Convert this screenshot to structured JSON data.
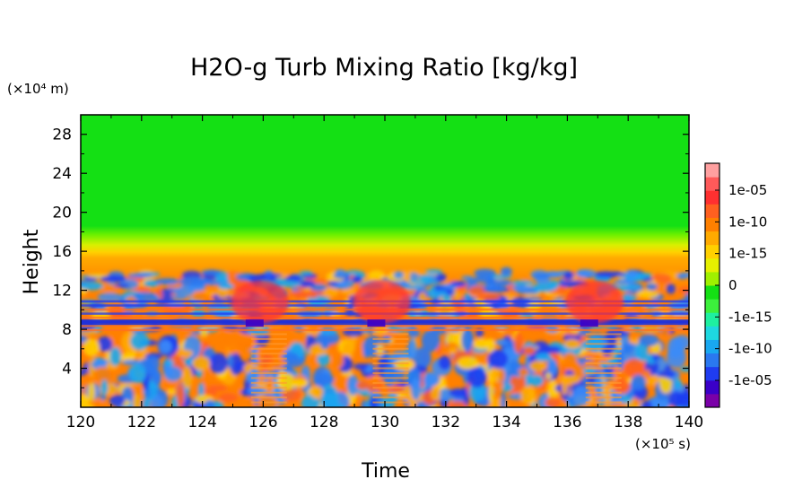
{
  "chart_data": {
    "type": "heatmap",
    "title": "H2O-g Turb Mixing Ratio [kg/kg]",
    "xlabel": "Time",
    "ylabel": "Height",
    "x_unit": "(×10⁵ s)",
    "y_unit": "(×10⁴ m)",
    "xlim": [
      120,
      140
    ],
    "ylim": [
      0,
      30
    ],
    "x_ticks": [
      120,
      122,
      124,
      126,
      128,
      130,
      132,
      134,
      136,
      138,
      140
    ],
    "x_tick_labels": [
      "120",
      "122",
      "124",
      "126",
      "128",
      "130",
      "132",
      "134",
      "136",
      "138",
      "140"
    ],
    "y_ticks": [
      4,
      8,
      12,
      16,
      20,
      24,
      28
    ],
    "y_tick_labels": [
      "4",
      "8",
      "12",
      "16",
      "20",
      "24",
      "28"
    ],
    "grid": false,
    "legend": "colorbar-right",
    "colorbar": {
      "tick_labels": [
        "1e-05",
        "1e-10",
        "1e-15",
        "0",
        "-1e-15",
        "-1e-10",
        "-1e-05"
      ],
      "colors": [
        "#7a00a8",
        "#3a00c8",
        "#1f3cf0",
        "#2a78f0",
        "#19a8f0",
        "#1ed8e0",
        "#1ef0a0",
        "#3cf03c",
        "#14e014",
        "#a0f000",
        "#e6f000",
        "#ffd000",
        "#ffaa00",
        "#ff8000",
        "#ff6020",
        "#ff3030",
        "#ff5a5a",
        "#ffa0a0"
      ]
    },
    "regimes": [
      {
        "height_range": [
          16.5,
          30
        ],
        "value": "0",
        "color": "#14e014"
      },
      {
        "height_range": [
          13.5,
          16.5
        ],
        "value": "1e-15 to 1e-10",
        "color": "#ffaa00"
      },
      {
        "height_range": [
          7,
          13.5
        ],
        "value": "-1e-10 to 1e-10 (mixed)",
        "color": "#2a78f0"
      },
      {
        "height_range": [
          0,
          7
        ],
        "value": "-1e-10 to 1e-10 (mixed)",
        "color": "#ff8000"
      }
    ],
    "events_time": [
      125.6,
      129.6,
      136.6
    ]
  }
}
